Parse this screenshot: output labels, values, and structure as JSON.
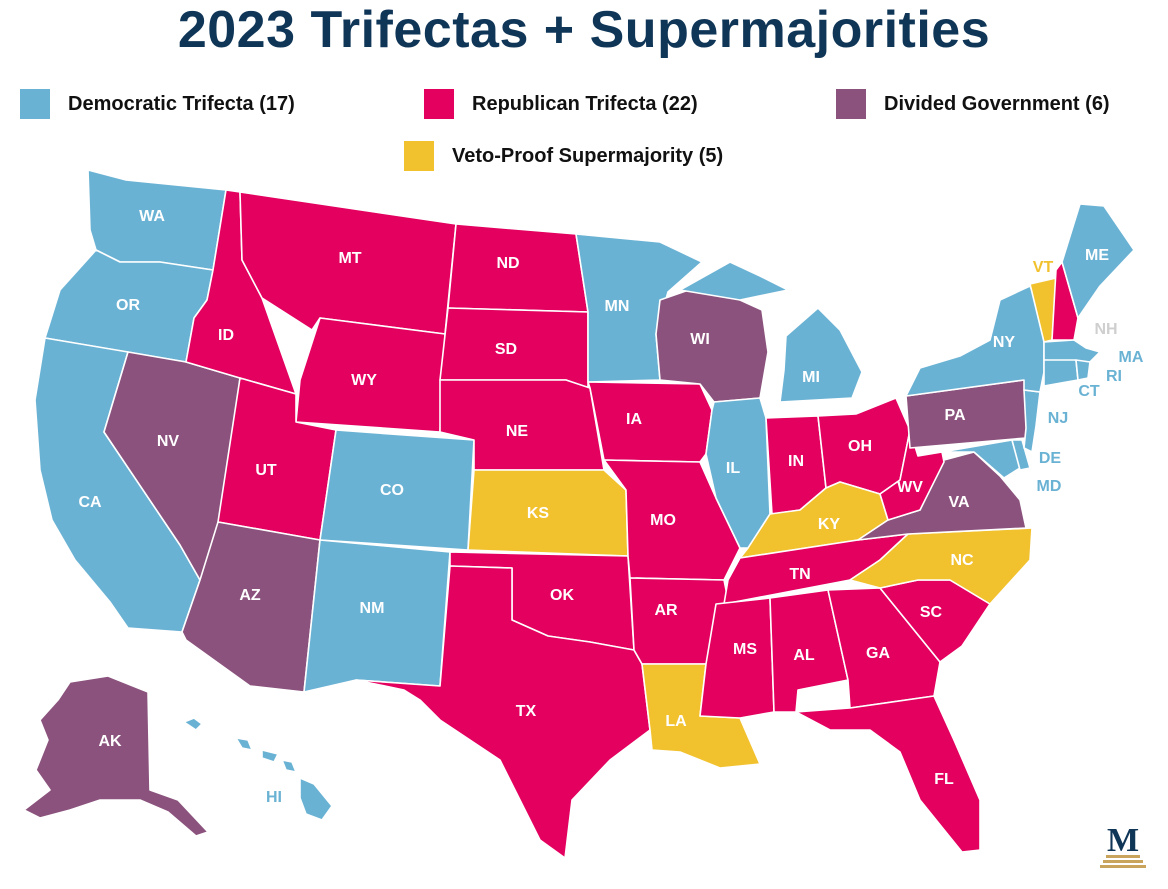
{
  "title": "2023 Trifectas + Supermajorities",
  "colors": {
    "democratic": "#6ab2d4",
    "republican": "#e3005f",
    "divided": "#8a527c",
    "supermajority": "#f2c12e",
    "title": "#0f3557"
  },
  "legend": [
    {
      "key": "democratic",
      "label": "Democratic Trifecta (17)"
    },
    {
      "key": "republican",
      "label": "Republican Trifecta (22)"
    },
    {
      "key": "divided",
      "label": "Divided Government (6)"
    },
    {
      "key": "supermajority",
      "label": "Veto-Proof Supermajority (5)"
    }
  ],
  "states": {
    "WA": "democratic",
    "OR": "democratic",
    "CA": "democratic",
    "CO": "democratic",
    "NM": "democratic",
    "MN": "democratic",
    "IL": "democratic",
    "MI": "democratic",
    "NY": "democratic",
    "ME": "democratic",
    "MA": "democratic",
    "RI": "democratic",
    "CT": "democratic",
    "NJ": "democratic",
    "DE": "democratic",
    "MD": "democratic",
    "HI": "democratic",
    "ID": "republican",
    "MT": "republican",
    "WY": "republican",
    "UT": "republican",
    "ND": "republican",
    "SD": "republican",
    "NE": "republican",
    "OK": "republican",
    "TX": "republican",
    "IA": "republican",
    "MO": "republican",
    "AR": "republican",
    "MS": "republican",
    "AL": "republican",
    "GA": "republican",
    "FL": "republican",
    "SC": "republican",
    "TN": "republican",
    "IN": "republican",
    "OH": "republican",
    "WV": "republican",
    "NH": "republican",
    "NV": "divided",
    "AZ": "divided",
    "WI": "divided",
    "PA": "divided",
    "VA": "divided",
    "AK": "divided",
    "KS": "supermajority",
    "KY": "supermajority",
    "NC": "supermajority",
    "LA": "supermajority",
    "VT": "supermajority"
  },
  "labels": {
    "WA": "WA",
    "OR": "OR",
    "CA": "CA",
    "NV": "NV",
    "ID": "ID",
    "MT": "MT",
    "WY": "WY",
    "UT": "UT",
    "AZ": "AZ",
    "CO": "CO",
    "NM": "NM",
    "ND": "ND",
    "SD": "SD",
    "NE": "NE",
    "KS": "KS",
    "OK": "OK",
    "TX": "TX",
    "MN": "MN",
    "IA": "IA",
    "MO": "MO",
    "AR": "AR",
    "LA": "LA",
    "WI": "WI",
    "IL": "IL",
    "MI": "MI",
    "IN": "IN",
    "OH": "OH",
    "KY": "KY",
    "TN": "TN",
    "MS": "MS",
    "AL": "AL",
    "GA": "GA",
    "FL": "FL",
    "SC": "SC",
    "NC": "NC",
    "VA": "VA",
    "WV": "WV",
    "PA": "PA",
    "NY": "NY",
    "VT": "VT",
    "NH": "NH",
    "ME": "ME",
    "MA": "MA",
    "RI": "RI",
    "CT": "CT",
    "NJ": "NJ",
    "DE": "DE",
    "MD": "MD",
    "AK": "AK",
    "HI": "HI"
  },
  "logo_letter": "M"
}
